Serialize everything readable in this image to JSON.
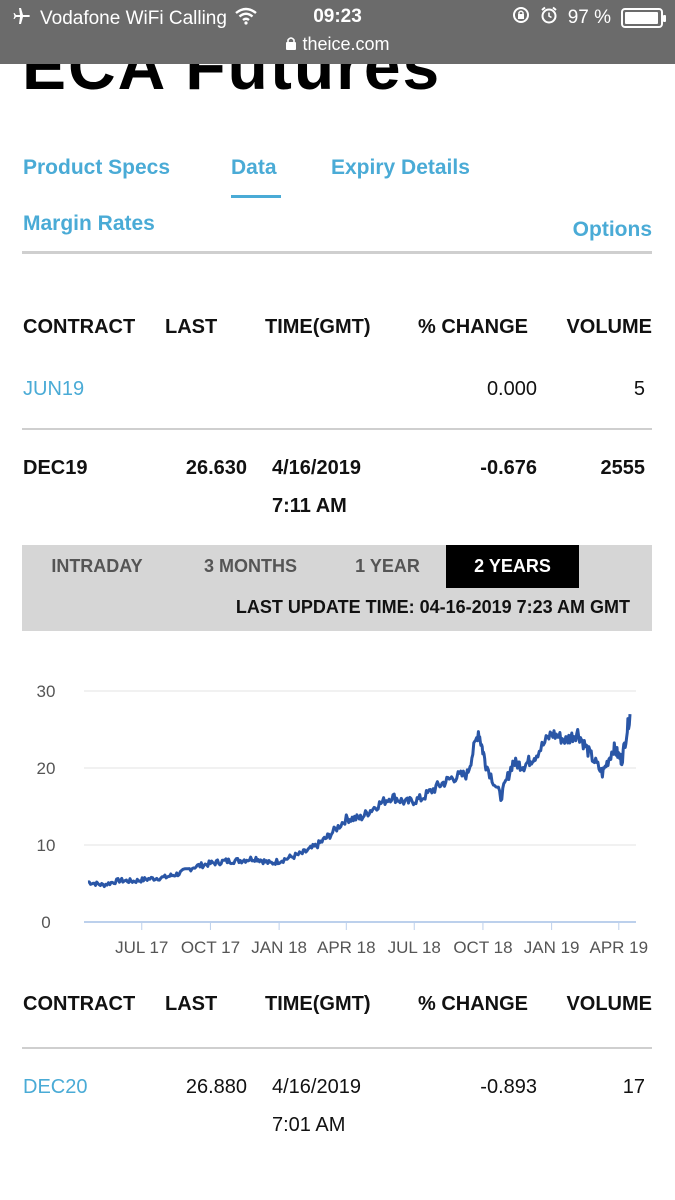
{
  "status_bar": {
    "carrier": "Vodafone WiFi Calling",
    "time": "09:23",
    "battery": "97 %",
    "battery_level": 0.97,
    "url": "theice.com"
  },
  "page_title": "ECA Futures",
  "tabs": {
    "product_specs": "Product Specs",
    "data": "Data",
    "expiry_details": "Expiry Details",
    "margin_rates": "Margin Rates",
    "options": "Options"
  },
  "table1": {
    "headers": [
      "CONTRACT",
      "LAST",
      "TIME(GMT)",
      "% CHANGE",
      "VOLUME"
    ],
    "rows": [
      {
        "contract": "JUN19",
        "last": "",
        "time1": "",
        "time2": "",
        "change": "0.000",
        "volume": "5"
      },
      {
        "contract": "DEC19",
        "last": "26.630",
        "time1": "4/16/2019",
        "time2": "7:11 AM",
        "change": "-0.676",
        "volume": "2555"
      }
    ]
  },
  "range": {
    "intraday": "INTRADAY",
    "three_months": "3 MONTHS",
    "one_year": "1 YEAR",
    "two_years": "2 YEARS",
    "selected": "2 YEARS",
    "last_update": "LAST UPDATE TIME: 04-16-2019 7:23 AM GMT"
  },
  "chart_data": {
    "type": "line",
    "title": "",
    "xlabel": "",
    "ylabel": "",
    "ylim": [
      0,
      30
    ],
    "y_ticks": [
      "30",
      "20",
      "10",
      "0"
    ],
    "x_ticks": [
      "JUL 17",
      "OCT 17",
      "JAN 18",
      "APR 18",
      "JUL 18",
      "OCT 18",
      "JAN 19",
      "APR 19"
    ],
    "grid": true,
    "color": "#2a56a6",
    "series": [
      {
        "x": [
          "2017-04-20",
          "2017-05-10",
          "2017-06-01",
          "2017-06-20",
          "2017-07-10",
          "2017-08-01",
          "2017-08-20",
          "2017-09-10",
          "2017-10-01",
          "2017-10-20",
          "2017-11-10",
          "2017-12-01",
          "2017-12-20",
          "2018-01-10",
          "2018-02-01",
          "2018-02-20",
          "2018-03-10",
          "2018-04-01",
          "2018-04-20",
          "2018-05-10",
          "2018-06-01",
          "2018-06-20",
          "2018-07-10",
          "2018-08-01",
          "2018-08-20",
          "2018-09-10",
          "2018-09-25",
          "2018-10-05",
          "2018-10-25",
          "2018-11-10",
          "2018-11-25",
          "2018-12-10",
          "2019-01-01",
          "2019-01-20",
          "2019-02-05",
          "2019-02-20",
          "2019-03-10",
          "2019-03-25",
          "2019-04-05",
          "2019-04-16"
        ],
        "values": [
          5.2,
          4.8,
          5.4,
          5.3,
          5.6,
          5.8,
          6.3,
          7.2,
          7.6,
          7.9,
          8.0,
          8.3,
          7.6,
          8.2,
          8.9,
          9.9,
          11.3,
          13.4,
          13.5,
          15.0,
          16.3,
          15.5,
          16.0,
          17.6,
          18.7,
          19.2,
          24.8,
          20.5,
          16.2,
          20.7,
          20.3,
          21.6,
          24.5,
          23.6,
          24.6,
          22.0,
          19.3,
          22.6,
          21.0,
          27.0
        ]
      }
    ]
  },
  "table2": {
    "headers": [
      "CONTRACT",
      "LAST",
      "TIME(GMT)",
      "% CHANGE",
      "VOLUME"
    ],
    "rows": [
      {
        "contract": "DEC20",
        "last": "26.880",
        "time1": "4/16/2019",
        "time2": "7:01 AM",
        "change": "-0.893",
        "volume": "17"
      }
    ]
  }
}
